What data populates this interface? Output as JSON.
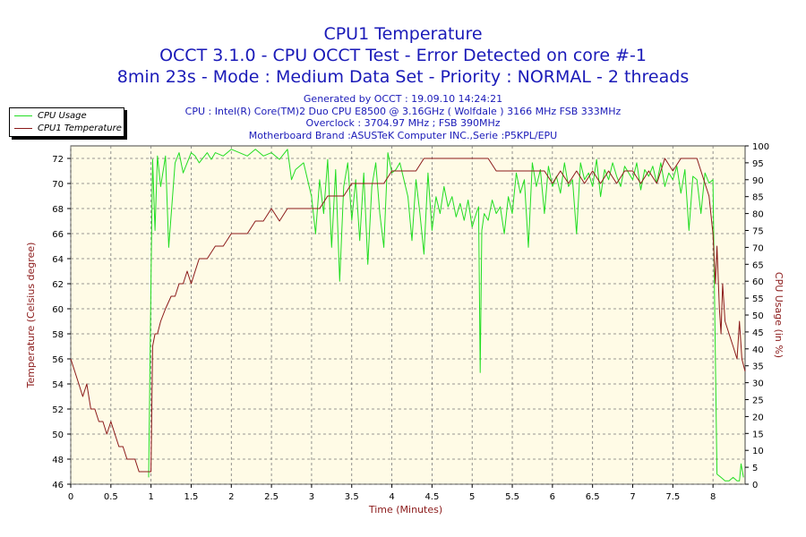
{
  "chart_data": {
    "type": "line",
    "title": "CPU1 Temperature",
    "subtitle": [
      "OCCT 3.1.0 - CPU OCCT Test - Error Detected on core #-1",
      "8min 23s - Mode : Medium Data Set - Priority : NORMAL - 2 threads"
    ],
    "info_lines": [
      "Generated by OCCT : 19.09.10 14:24:21",
      "CPU : Intel(R) Core(TM)2 Duo CPU E8500 @ 3.16GHz ( Wolfdale ) 3166 MHz FSB 333MHz",
      "Overclock : 3704.97 MHz ; FSB 390MHz",
      "Motherboard Brand :ASUSTeK Computer INC.,Serie :P5KPL/EPU"
    ],
    "xlabel": "Time (Minutes)",
    "ylabel": "Temperature (Celsius degree)",
    "y2label": "CPU Usage (in %)",
    "xlim": [
      0,
      8.4
    ],
    "ylim": [
      46,
      73
    ],
    "y2lim": [
      0,
      100
    ],
    "x_ticks": [
      0,
      0.5,
      1,
      1.5,
      2,
      2.5,
      3,
      3.5,
      4,
      4.5,
      5,
      5.5,
      6,
      6.5,
      7,
      7.5,
      8
    ],
    "x_tick_labels": [
      "0",
      "0.5",
      "1",
      "1.5",
      "2",
      "2.5",
      "3",
      "3.5",
      "4",
      "4.5",
      "5",
      "5.5",
      "6",
      "6.5",
      "7",
      "7.5",
      "8"
    ],
    "y_ticks": [
      46,
      48,
      50,
      52,
      54,
      56,
      58,
      60,
      62,
      64,
      66,
      68,
      70,
      72
    ],
    "y2_ticks": [
      0,
      5,
      10,
      15,
      20,
      25,
      30,
      35,
      40,
      45,
      50,
      55,
      60,
      65,
      70,
      75,
      80,
      85,
      90,
      95,
      100
    ],
    "grid": true,
    "legend_position": "top-left",
    "series": [
      {
        "name": "CPU Usage",
        "axis": "right",
        "color": "#22dd22",
        "x": [
          0.97,
          1.0,
          1.02,
          1.05,
          1.08,
          1.12,
          1.18,
          1.22,
          1.3,
          1.35,
          1.4,
          1.5,
          1.55,
          1.6,
          1.7,
          1.75,
          1.8,
          1.9,
          2.0,
          2.1,
          2.2,
          2.3,
          2.4,
          2.5,
          2.6,
          2.7,
          2.75,
          2.8,
          2.9,
          3.0,
          3.05,
          3.1,
          3.15,
          3.2,
          3.25,
          3.3,
          3.35,
          3.4,
          3.45,
          3.5,
          3.55,
          3.6,
          3.65,
          3.7,
          3.75,
          3.8,
          3.85,
          3.9,
          3.95,
          4.0,
          4.05,
          4.1,
          4.15,
          4.2,
          4.25,
          4.3,
          4.35,
          4.4,
          4.45,
          4.5,
          4.55,
          4.6,
          4.65,
          4.7,
          4.75,
          4.8,
          4.85,
          4.9,
          4.95,
          5.0,
          5.05,
          5.08,
          5.1,
          5.12,
          5.15,
          5.2,
          5.25,
          5.3,
          5.35,
          5.4,
          5.45,
          5.5,
          5.55,
          5.6,
          5.65,
          5.7,
          5.75,
          5.8,
          5.85,
          5.9,
          5.95,
          6.0,
          6.05,
          6.1,
          6.15,
          6.2,
          6.25,
          6.3,
          6.35,
          6.4,
          6.45,
          6.5,
          6.55,
          6.6,
          6.65,
          6.7,
          6.75,
          6.8,
          6.85,
          6.9,
          6.95,
          7.0,
          7.05,
          7.1,
          7.15,
          7.2,
          7.25,
          7.3,
          7.35,
          7.4,
          7.45,
          7.5,
          7.55,
          7.6,
          7.65,
          7.7,
          7.75,
          7.8,
          7.85,
          7.9,
          7.95,
          8.0,
          8.05,
          8.1,
          8.15,
          8.2,
          8.25,
          8.3,
          8.33,
          8.35,
          8.38
        ],
        "values": [
          2,
          60,
          96,
          75,
          97,
          88,
          97,
          70,
          95,
          98,
          92,
          98,
          97,
          95,
          98,
          96,
          98,
          97,
          99,
          98,
          97,
          99,
          97,
          98,
          96,
          99,
          90,
          93,
          95,
          85,
          74,
          90,
          80,
          96,
          70,
          93,
          60,
          88,
          95,
          78,
          90,
          72,
          92,
          65,
          88,
          95,
          80,
          70,
          98,
          92,
          93,
          95,
          90,
          85,
          72,
          90,
          80,
          68,
          92,
          75,
          85,
          80,
          88,
          82,
          85,
          79,
          83,
          78,
          84,
          76,
          80,
          82,
          33,
          75,
          80,
          78,
          84,
          80,
          82,
          74,
          85,
          80,
          92,
          86,
          90,
          70,
          95,
          88,
          93,
          80,
          94,
          88,
          91,
          86,
          95,
          88,
          90,
          74,
          95,
          90,
          92,
          88,
          96,
          85,
          93,
          90,
          95,
          91,
          88,
          94,
          92,
          90,
          95,
          87,
          93,
          91,
          94,
          89,
          95,
          88,
          92,
          90,
          94,
          86,
          93,
          75,
          91,
          90,
          80,
          92,
          89,
          90,
          3,
          2,
          1,
          1,
          2,
          1,
          1,
          6,
          2
        ]
      },
      {
        "name": "CPU1 Temperature",
        "axis": "left",
        "color": "#8b1a1a",
        "x": [
          0,
          0.05,
          0.1,
          0.15,
          0.2,
          0.25,
          0.3,
          0.35,
          0.4,
          0.45,
          0.5,
          0.55,
          0.6,
          0.65,
          0.7,
          0.75,
          0.8,
          0.85,
          0.9,
          0.95,
          1.0,
          1.02,
          1.05,
          1.08,
          1.12,
          1.18,
          1.25,
          1.3,
          1.35,
          1.4,
          1.45,
          1.5,
          1.55,
          1.6,
          1.7,
          1.8,
          1.9,
          2.0,
          2.1,
          2.2,
          2.3,
          2.4,
          2.5,
          2.6,
          2.7,
          2.8,
          2.9,
          3.0,
          3.1,
          3.2,
          3.3,
          3.4,
          3.5,
          3.6,
          3.7,
          3.8,
          3.9,
          4.0,
          4.1,
          4.2,
          4.3,
          4.4,
          4.5,
          4.6,
          4.7,
          4.8,
          4.9,
          5.0,
          5.1,
          5.2,
          5.3,
          5.4,
          5.5,
          5.6,
          5.7,
          5.8,
          5.9,
          6.0,
          6.1,
          6.2,
          6.3,
          6.4,
          6.5,
          6.6,
          6.7,
          6.8,
          6.9,
          7.0,
          7.1,
          7.2,
          7.3,
          7.4,
          7.5,
          7.6,
          7.7,
          7.8,
          7.9,
          7.95,
          8.0,
          8.03,
          8.05,
          8.08,
          8.1,
          8.12,
          8.15,
          8.2,
          8.25,
          8.3,
          8.33,
          8.36,
          8.4
        ],
        "values": [
          56,
          55,
          54,
          53,
          54,
          52,
          52,
          51,
          51,
          50,
          51,
          50,
          49,
          49,
          48,
          48,
          48,
          47,
          47,
          47,
          47,
          57,
          58,
          58,
          59,
          60,
          61,
          61,
          62,
          62,
          63,
          62,
          63,
          64,
          64,
          65,
          65,
          66,
          66,
          66,
          67,
          67,
          68,
          67,
          68,
          68,
          68,
          68,
          68,
          69,
          69,
          69,
          70,
          70,
          70,
          70,
          70,
          71,
          71,
          71,
          71,
          72,
          72,
          72,
          72,
          72,
          72,
          72,
          72,
          72,
          71,
          71,
          71,
          71,
          71,
          71,
          71,
          70,
          71,
          70,
          71,
          70,
          71,
          70,
          71,
          70,
          71,
          71,
          70,
          71,
          70,
          72,
          71,
          72,
          72,
          72,
          70,
          69,
          66,
          62,
          65,
          60,
          58,
          62,
          59,
          58,
          57,
          56,
          59,
          56,
          55
        ]
      }
    ]
  },
  "legend": [
    {
      "label": "CPU Usage",
      "color": "#22dd22"
    },
    {
      "label": "CPU1 Temperature",
      "color": "#8b1a1a"
    }
  ]
}
